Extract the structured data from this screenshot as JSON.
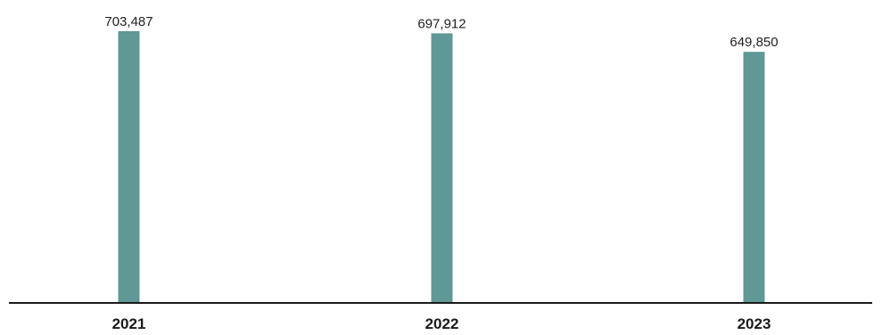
{
  "chart_data": {
    "type": "bar",
    "title": "",
    "xlabel": "",
    "ylabel": "",
    "categories": [
      "2021",
      "2022",
      "2023"
    ],
    "values": [
      703487,
      697912,
      649850
    ],
    "data_labels": [
      "703,487",
      "697,912",
      "649,850"
    ],
    "ylim": [
      0,
      703487
    ],
    "grid": false,
    "legend": "none",
    "bar_color": "#5f9895",
    "axis_color": "#1a1a1a"
  }
}
